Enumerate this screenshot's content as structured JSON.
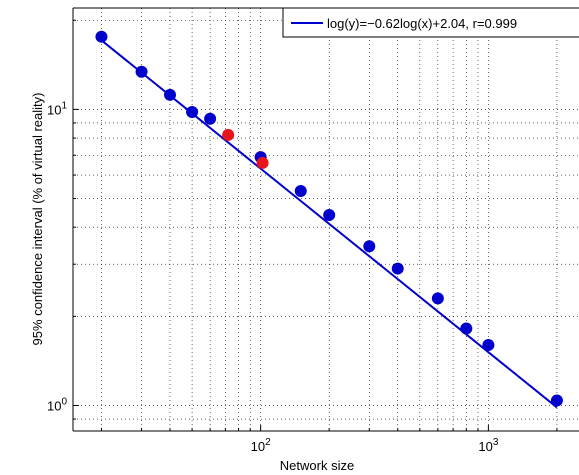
{
  "chart_data": {
    "type": "scatter",
    "xscale": "log",
    "yscale": "log",
    "xlim": [
      15,
      2500
    ],
    "ylim": [
      0.82,
      22
    ],
    "grid": true,
    "legend_position": "top-right",
    "xlabel": "Network size",
    "ylabel": "95% confidence interval (% of virtual reality)",
    "x_ticks": [
      {
        "value": 100,
        "base": "10",
        "exp": "2"
      },
      {
        "value": 1000,
        "base": "10",
        "exp": "3"
      }
    ],
    "y_ticks": [
      {
        "value": 1,
        "base": "10",
        "exp": "0"
      },
      {
        "value": 10,
        "base": "10",
        "exp": "1"
      }
    ],
    "series": [
      {
        "color": "#0000cc",
        "points": [
          {
            "x": 20,
            "y": 17.6
          },
          {
            "x": 30,
            "y": 13.4
          },
          {
            "x": 40,
            "y": 11.2
          },
          {
            "x": 50,
            "y": 9.8
          },
          {
            "x": 60,
            "y": 9.3
          },
          {
            "x": 100,
            "y": 6.9
          },
          {
            "x": 150,
            "y": 5.3
          },
          {
            "x": 200,
            "y": 4.4
          },
          {
            "x": 300,
            "y": 3.45
          },
          {
            "x": 400,
            "y": 2.9
          },
          {
            "x": 600,
            "y": 2.3
          },
          {
            "x": 800,
            "y": 1.82
          },
          {
            "x": 1000,
            "y": 1.6
          },
          {
            "x": 2000,
            "y": 1.04
          }
        ]
      },
      {
        "color": "#e8141b",
        "points": [
          {
            "x": 72,
            "y": 8.2
          },
          {
            "x": 102,
            "y": 6.6
          }
        ]
      }
    ],
    "fit_line": {
      "label": "log(y)=−0.62log(x)+2.04, r=0.999",
      "color": "#0000cc",
      "slope": -0.62,
      "intercept": 2.04,
      "x_range": [
        20,
        2000
      ]
    }
  }
}
